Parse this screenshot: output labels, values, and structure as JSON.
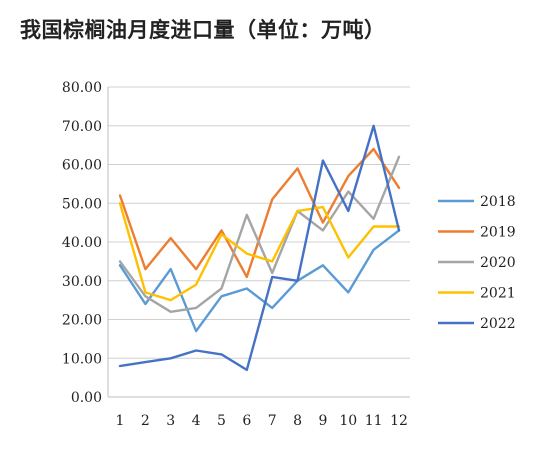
{
  "chart_data": {
    "type": "line",
    "title": "我国棕榈油月度进口量（单位：万吨）",
    "xlabel": "",
    "ylabel": "",
    "categories": [
      "1",
      "2",
      "3",
      "4",
      "5",
      "6",
      "7",
      "8",
      "9",
      "10",
      "11",
      "12"
    ],
    "ylim": [
      0,
      80
    ],
    "yticks": [
      "0.00",
      "10.00",
      "20.00",
      "30.00",
      "40.00",
      "50.00",
      "60.00",
      "70.00",
      "80.00"
    ],
    "grid": "horizontal",
    "legend_position": "right",
    "series": [
      {
        "name": "2018",
        "color": "#5b9bd5",
        "values": [
          34,
          24,
          33,
          17,
          26,
          28,
          23,
          30,
          34,
          27,
          38,
          43
        ]
      },
      {
        "name": "2019",
        "color": "#ed7d31",
        "values": [
          52,
          33,
          41,
          33,
          43,
          31,
          51,
          59,
          45,
          57,
          64,
          54
        ]
      },
      {
        "name": "2020",
        "color": "#a5a5a5",
        "values": [
          35,
          26,
          22,
          23,
          28,
          47,
          32,
          48,
          43,
          53,
          46,
          62
        ]
      },
      {
        "name": "2021",
        "color": "#ffc000",
        "values": [
          50,
          27,
          25,
          29,
          42,
          37,
          35,
          48,
          49,
          36,
          44,
          44
        ]
      },
      {
        "name": "2022",
        "color": "#4472c4",
        "values": [
          8,
          9,
          10,
          12,
          11,
          7,
          31,
          30,
          61,
          48,
          70,
          43
        ]
      }
    ]
  }
}
